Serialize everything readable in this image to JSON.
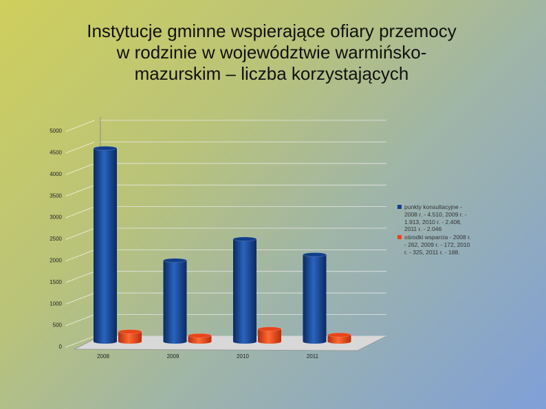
{
  "chart_data": {
    "type": "bar",
    "title": "Instytucje  gminne wspierające ofiary przemocy w rodzinie w województwie warmińsko-mazurskim – liczba korzystających",
    "categories": [
      "2008",
      "2009",
      "2010",
      "2011"
    ],
    "series": [
      {
        "name": "punkty konsultacyjne - 2008 r. - 4.510, 2009 r. - 1.913, 2010 r. - 2.408, 2011 r. - 2.046",
        "color": "#123f8a",
        "values": [
          4510,
          1913,
          2408,
          2046
        ]
      },
      {
        "name": "ośrodki wsparcia - 2008 r. - 262, 2009 r. - 172, 2010 r. - 325, 2011 r. - 188.",
        "color": "#e8441a",
        "values": [
          262,
          172,
          325,
          188
        ]
      }
    ],
    "ylim": [
      0,
      5000
    ],
    "yticks": [
      0,
      500,
      1000,
      1500,
      2000,
      2500,
      3000,
      3500,
      4000,
      4500,
      5000
    ],
    "grid": true,
    "legend": "right"
  }
}
